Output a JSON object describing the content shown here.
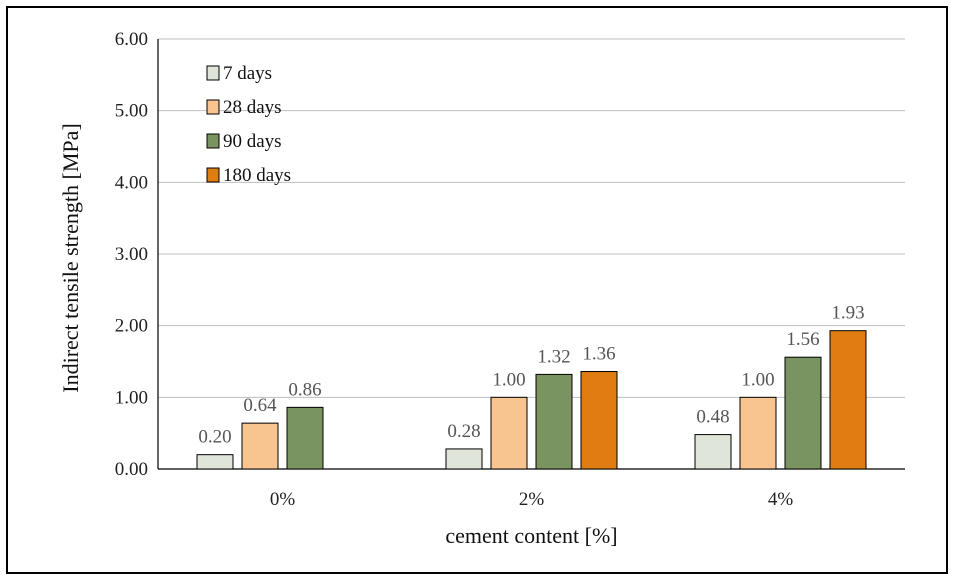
{
  "chart_data": {
    "type": "bar",
    "title": "",
    "xlabel": "cement content [%]",
    "ylabel": "Indirect tensile strength [MPa]",
    "ylim": [
      0,
      6
    ],
    "yticks": [
      "0.00",
      "1.00",
      "2.00",
      "3.00",
      "4.00",
      "5.00",
      "6.00"
    ],
    "grid": true,
    "legend_position": "top-left",
    "categories": [
      "0%",
      "2%",
      "4%"
    ],
    "series": [
      {
        "name": "7 days",
        "color": "#dfe5d8",
        "values": [
          0.2,
          0.28,
          0.48
        ],
        "labels": [
          "0.20",
          "0.28",
          "0.48"
        ]
      },
      {
        "name": "28 days",
        "color": "#f8c590",
        "values": [
          0.64,
          1.0,
          1.0
        ],
        "labels": [
          "0.64",
          "1.00",
          "1.00"
        ]
      },
      {
        "name": "90 days",
        "color": "#7a9461",
        "values": [
          0.86,
          1.32,
          1.56
        ],
        "labels": [
          "0.86",
          "1.32",
          "1.56"
        ]
      },
      {
        "name": "180 days",
        "color": "#e07d12",
        "values": [
          null,
          1.36,
          1.93
        ],
        "labels": [
          null,
          "1.36",
          "1.93"
        ]
      }
    ]
  }
}
